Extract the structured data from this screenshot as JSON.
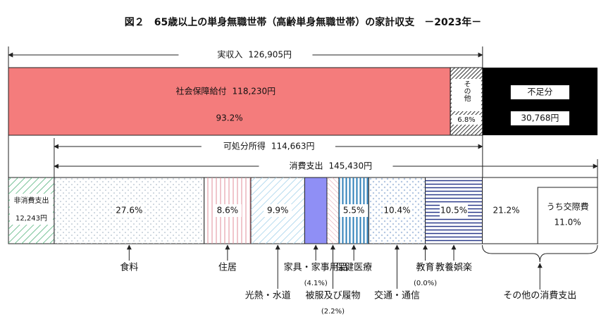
{
  "chart_data": {
    "type": "stacked-bar",
    "title": "図２　65歳以上の単身無職世帯（高齢単身無職世帯）の家計収支　－2023年－",
    "income": {
      "label": "実収入",
      "amount": 126905,
      "amount_label": "126,905円"
    },
    "disposable": {
      "label": "可処分所得",
      "amount": 114663,
      "amount_label": "114,663円"
    },
    "consumption": {
      "label": "消費支出",
      "amount": 145430,
      "amount_label": "145,430円"
    },
    "income_segments": [
      {
        "name": "社会保障給付",
        "amount": 118230,
        "amount_label": "118,230円",
        "share": 93.2,
        "share_label": "93.2%",
        "color": "#f47c7c"
      },
      {
        "name": "その他",
        "share": 6.8,
        "share_label": "6.8%",
        "color": "#ffffff"
      }
    ],
    "deficit": {
      "name": "不足分",
      "amount": 30768,
      "amount_label": "30,768円",
      "color": "#000000"
    },
    "non_consumption": {
      "name": "非消費支出",
      "amount": 12243,
      "amount_label": "12,243円",
      "color": "#ffffff"
    },
    "categories": [
      "食料",
      "住居",
      "光熱・水道",
      "家具・家事用品",
      "被服及び履物",
      "保健医療",
      "交通・通信",
      "教育",
      "教養娯楽",
      "その他の消費支出"
    ],
    "values": [
      27.6,
      8.6,
      9.9,
      4.1,
      2.2,
      5.5,
      10.4,
      0.0,
      10.5,
      21.2
    ],
    "value_labels": [
      "27.6%",
      "8.6%",
      "9.9%",
      "(4.1%)",
      "(2.2%)",
      "5.5%",
      "10.4%",
      "(0.0%)",
      "10.5%",
      "21.2%"
    ],
    "colors": [
      "#ffffff",
      "#ffffff",
      "#ffffff",
      "#8f8ff5",
      "#ffffff",
      "#ffffff",
      "#ffffff",
      "#ffffff",
      "#ffffff",
      "#ffffff"
    ],
    "sub": {
      "name": "うち交際費",
      "value": 11.0,
      "value_label": "11.0%"
    }
  }
}
